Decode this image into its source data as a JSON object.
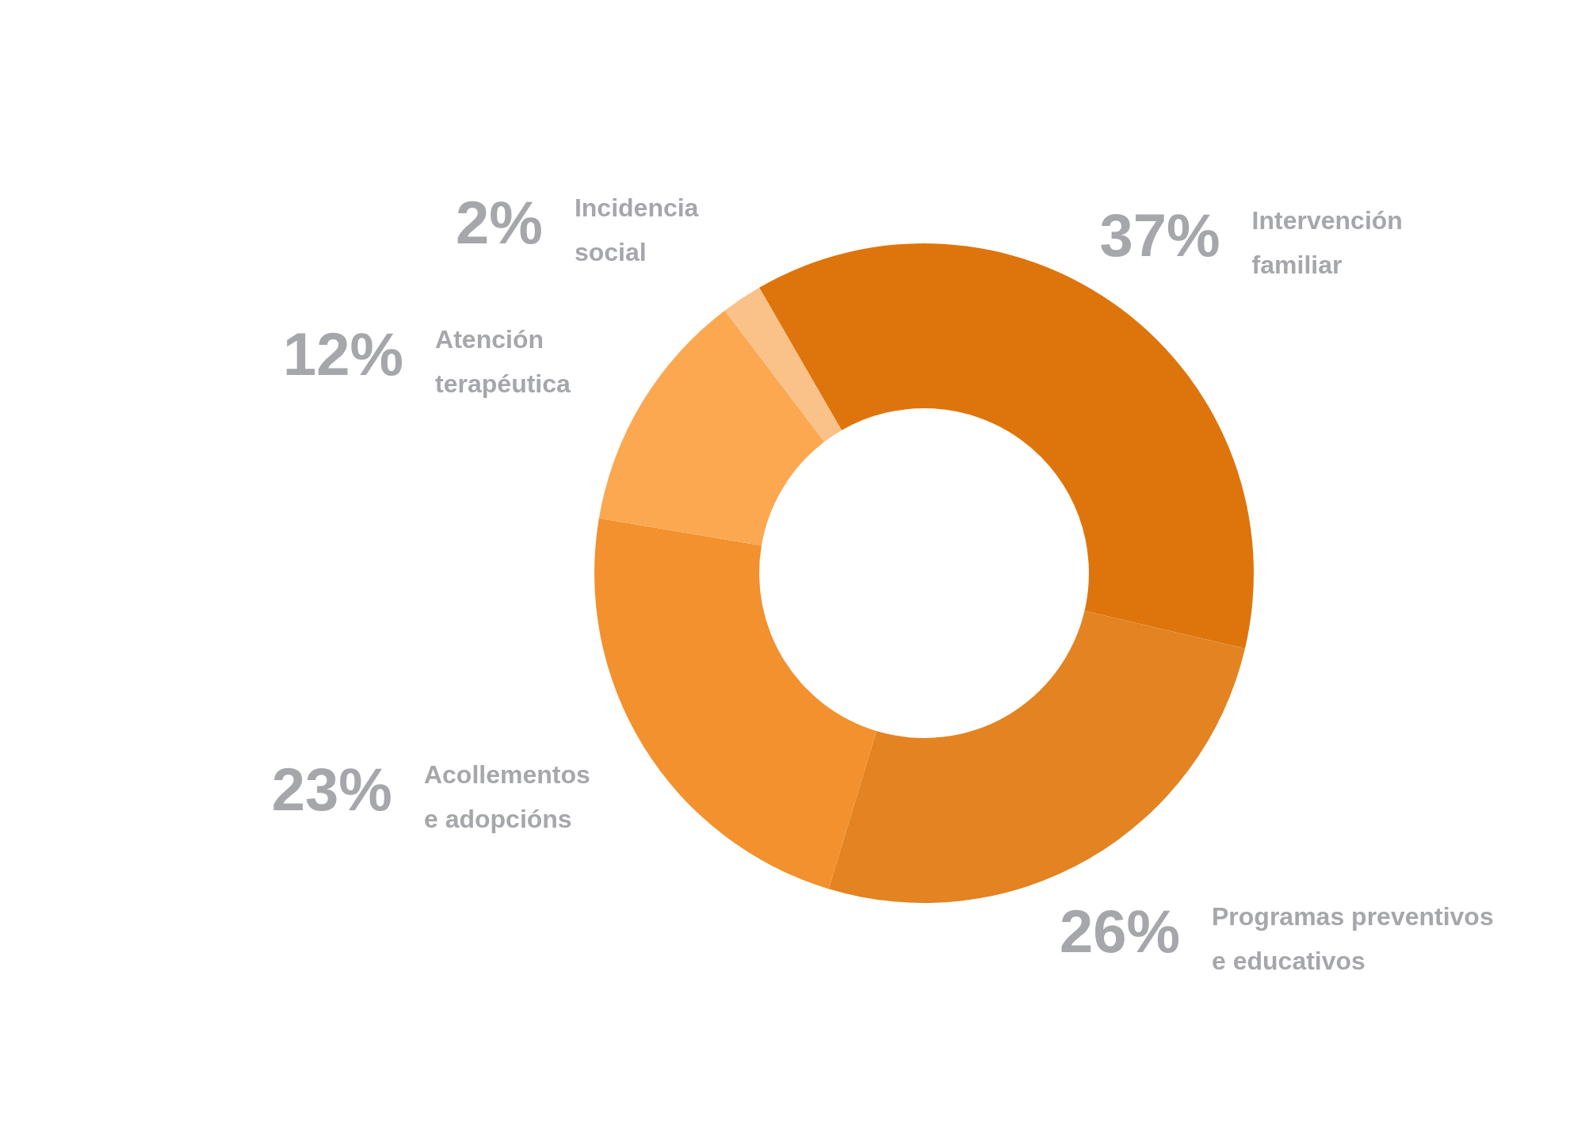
{
  "chart_data": {
    "type": "donut",
    "categories": [
      "Intervención familiar",
      "Programas preventivos e educativos",
      "Acollementos e adopcións",
      "Atención terapéutica",
      "Incidencia social"
    ],
    "values": [
      37,
      26,
      23,
      12,
      2
    ],
    "colors": [
      "#de750c",
      "#e38322",
      "#f2912d",
      "#fba851",
      "#fac189"
    ],
    "value_labels": [
      "37%",
      "26%",
      "23%",
      "12%",
      "2%"
    ]
  }
}
